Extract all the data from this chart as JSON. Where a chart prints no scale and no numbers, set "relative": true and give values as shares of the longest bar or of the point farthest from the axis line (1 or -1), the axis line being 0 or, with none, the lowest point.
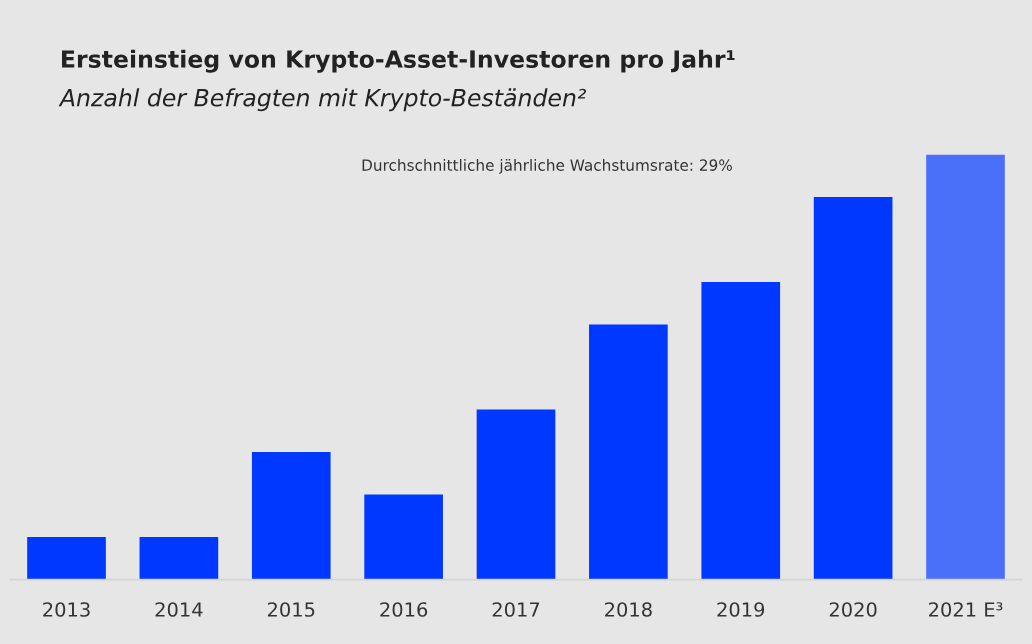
{
  "chart_data": {
    "type": "bar",
    "title": "Ersteinstieg von Krypto-Asset-Investoren pro Jahr¹",
    "subtitle": "Anzahl der Befragten mit Krypto-Beständen²",
    "categories": [
      "2013",
      "2014",
      "2015",
      "2016",
      "2017",
      "2018",
      "2019",
      "2020",
      "2021 E³"
    ],
    "values": [
      0.1,
      0.1,
      0.3,
      0.2,
      0.4,
      0.6,
      0.7,
      0.9,
      1.0
    ],
    "colors": [
      "#0038ff",
      "#0038ff",
      "#0038ff",
      "#0038ff",
      "#0038ff",
      "#0038ff",
      "#0038ff",
      "#0038ff",
      "#4a6ff8"
    ],
    "relative": true,
    "annotations": [
      "Durchschnittliche jährliche Wachstumsrate: 29%"
    ]
  }
}
